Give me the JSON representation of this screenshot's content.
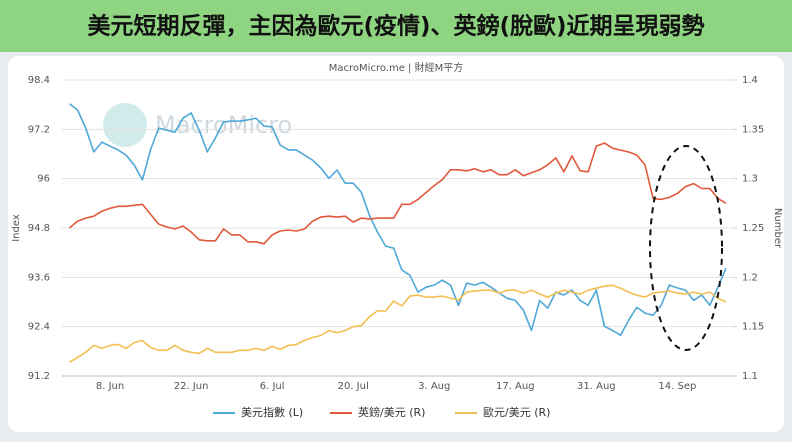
{
  "chart_data": {
    "type": "line",
    "title": "美元短期反彈，主因為歐元(疫情)、英鎊(脫歐)近期呈現弱勢",
    "subtitle": "MacroMicro.me | 財經M平方",
    "watermark": "MacroMicro",
    "ylabel": "Index",
    "y2label": "Number",
    "categories": [
      null,
      null,
      null,
      null,
      null,
      "8. Jun",
      null,
      null,
      null,
      null,
      null,
      null,
      null,
      null,
      null,
      "22. Jun",
      null,
      null,
      null,
      null,
      null,
      null,
      null,
      null,
      null,
      "6. Jul",
      null,
      null,
      null,
      null,
      null,
      null,
      null,
      null,
      null,
      "20. Jul",
      null,
      null,
      null,
      null,
      null,
      null,
      null,
      null,
      null,
      "3. Aug",
      null,
      null,
      null,
      null,
      null,
      null,
      null,
      null,
      null,
      "17. Aug",
      null,
      null,
      null,
      null,
      null,
      null,
      null,
      null,
      null,
      "31. Aug",
      null,
      null,
      null,
      null,
      null,
      null,
      null,
      null,
      null,
      "14. Sep",
      null,
      null,
      null,
      null,
      null,
      null
    ],
    "ylim": [
      91.2,
      98.4
    ],
    "yticks": [
      91.2,
      92.4,
      93.6,
      94.8,
      96,
      97.2,
      98.4
    ],
    "y2lim": [
      1.1,
      1.4
    ],
    "y2ticks": [
      1.1,
      1.15,
      1.2,
      1.25,
      1.3,
      1.35,
      1.4
    ],
    "grid": true,
    "series": [
      {
        "name": "美元指數 (L)",
        "color": "#4fa8d8",
        "values": [
          97.82,
          97.67,
          97.23,
          96.65,
          96.89,
          96.79,
          96.7,
          96.57,
          96.33,
          95.97,
          96.7,
          97.23,
          97.18,
          97.13,
          97.47,
          97.6,
          97.18,
          96.65,
          96.99,
          97.38,
          97.4,
          97.4,
          97.43,
          97.47,
          97.28,
          97.26,
          96.82,
          96.7,
          96.7,
          96.57,
          96.45,
          96.26,
          96.01,
          96.21,
          95.89,
          95.89,
          95.67,
          95.11,
          94.7,
          94.36,
          94.31,
          93.78,
          93.65,
          93.24,
          93.36,
          93.41,
          93.53,
          93.41,
          92.92,
          93.46,
          93.41,
          93.48,
          93.36,
          93.22,
          93.09,
          93.04,
          92.8,
          92.31,
          93.04,
          92.85,
          93.24,
          93.17,
          93.29,
          93.04,
          92.92,
          93.29,
          92.41,
          92.31,
          92.19,
          92.56,
          92.87,
          92.73,
          92.68,
          92.92,
          93.41,
          93.34,
          93.29,
          93.04,
          93.17,
          92.92,
          93.36,
          93.82
        ]
      },
      {
        "name": "英鎊/美元 (R)",
        "color": "#e0593c",
        "axis": "y2",
        "values": [
          1.25,
          1.257,
          1.26,
          1.262,
          1.267,
          1.27,
          1.272,
          1.272,
          1.273,
          1.274,
          1.264,
          1.254,
          1.251,
          1.249,
          1.252,
          1.246,
          1.238,
          1.237,
          1.237,
          1.249,
          1.243,
          1.243,
          1.236,
          1.236,
          1.234,
          1.243,
          1.247,
          1.248,
          1.247,
          1.249,
          1.257,
          1.261,
          1.262,
          1.261,
          1.262,
          1.256,
          1.26,
          1.259,
          1.26,
          1.26,
          1.26,
          1.274,
          1.274,
          1.279,
          1.286,
          1.293,
          1.299,
          1.309,
          1.309,
          1.308,
          1.31,
          1.307,
          1.309,
          1.304,
          1.304,
          1.309,
          1.303,
          1.306,
          1.309,
          1.314,
          1.321,
          1.307,
          1.323,
          1.308,
          1.307,
          1.333,
          1.336,
          1.331,
          1.329,
          1.327,
          1.324,
          1.314,
          1.28,
          1.279,
          1.281,
          1.285,
          1.292,
          1.295,
          1.29,
          1.29,
          1.28,
          1.275
        ]
      },
      {
        "name": "歐元/美元 (R)",
        "color": "#f2bf52",
        "axis": "y2",
        "values": [
          1.114,
          1.119,
          1.124,
          1.131,
          1.128,
          1.131,
          1.132,
          1.128,
          1.134,
          1.136,
          1.129,
          1.126,
          1.126,
          1.131,
          1.126,
          1.124,
          1.123,
          1.128,
          1.124,
          1.124,
          1.124,
          1.126,
          1.126,
          1.128,
          1.126,
          1.13,
          1.127,
          1.131,
          1.132,
          1.136,
          1.139,
          1.141,
          1.146,
          1.144,
          1.146,
          1.15,
          1.151,
          1.16,
          1.166,
          1.166,
          1.176,
          1.171,
          1.181,
          1.182,
          1.18,
          1.18,
          1.181,
          1.179,
          1.177,
          1.185,
          1.186,
          1.187,
          1.187,
          1.184,
          1.187,
          1.187,
          1.184,
          1.187,
          1.183,
          1.18,
          1.184,
          1.187,
          1.185,
          1.183,
          1.187,
          1.189,
          1.191,
          1.192,
          1.189,
          1.185,
          1.182,
          1.18,
          1.184,
          1.185,
          1.186,
          1.184,
          1.183,
          1.185,
          1.183,
          1.185,
          1.179,
          1.175
        ]
      }
    ]
  }
}
